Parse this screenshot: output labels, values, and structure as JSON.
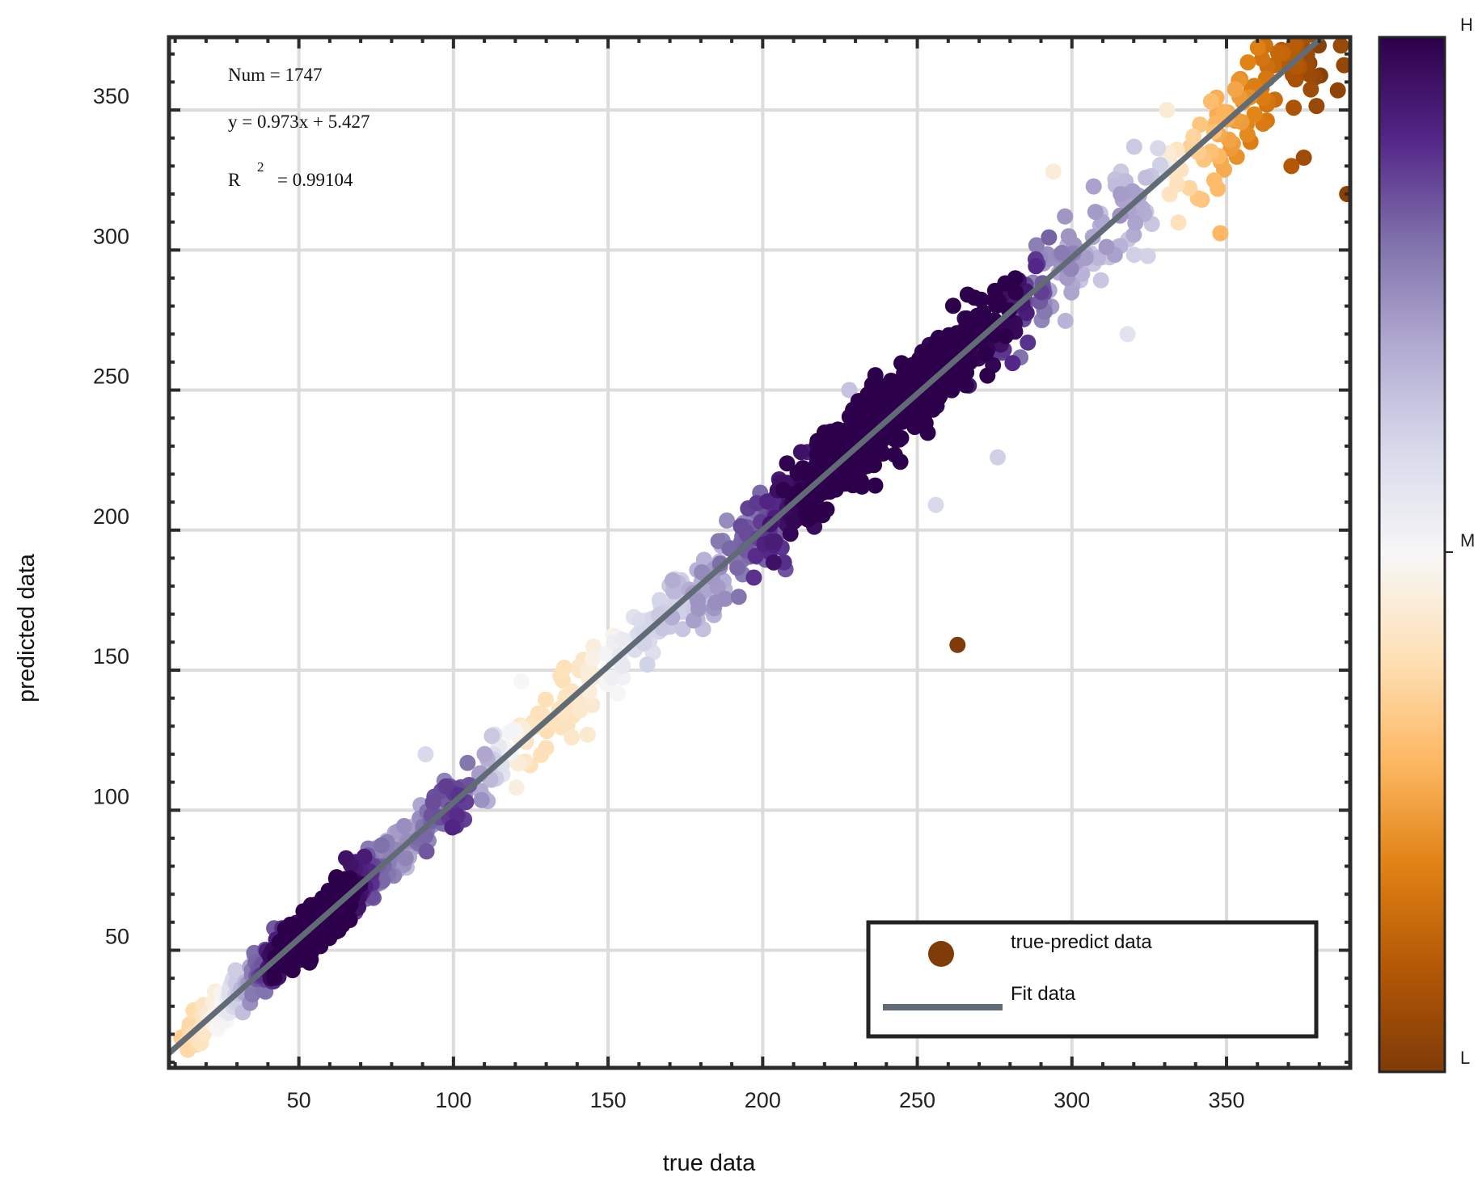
{
  "chart_data": {
    "type": "scatter",
    "xlabel": "true data",
    "ylabel": "predicted data",
    "xlim": [
      8,
      390
    ],
    "ylim": [
      8,
      376
    ],
    "x_ticks": [
      50,
      100,
      150,
      200,
      250,
      300,
      350
    ],
    "y_ticks": [
      50,
      100,
      150,
      200,
      250,
      300,
      350
    ],
    "grid": true,
    "annotations": {
      "num": "Num = 1747",
      "equation": "y = 0.973x + 5.427",
      "r2_prefix": "R",
      "r2_sup": "2",
      "r2_value": "= 0.99104"
    },
    "fit": {
      "slope": 0.973,
      "intercept": 5.427,
      "x_range": [
        8,
        390
      ],
      "color": "#616b75"
    },
    "legend": {
      "placement": "bottom-right",
      "entries": [
        {
          "label": "true-predict data",
          "marker": "circle",
          "color": "#7f3b08"
        },
        {
          "label": "Fit data",
          "marker": "line",
          "color": "#616b75"
        }
      ]
    },
    "colorbar": {
      "labels": {
        "high": "H",
        "mid": "M",
        "low": "L"
      },
      "colors": [
        "#2d004b",
        "#542788",
        "#8073ac",
        "#b2abd2",
        "#d8daeb",
        "#f7f7f7",
        "#fee0b6",
        "#fdb863",
        "#e08214",
        "#b35806",
        "#7f3b08"
      ]
    },
    "point_count_shown": 1747,
    "outliers": [
      {
        "x": 263,
        "y": 159,
        "density": 0.0
      },
      {
        "x": 389,
        "y": 320,
        "density": 0.02
      },
      {
        "x": 375,
        "y": 333,
        "density": 0.06
      },
      {
        "x": 371,
        "y": 330,
        "density": 0.1
      },
      {
        "x": 348,
        "y": 306,
        "density": 0.3
      },
      {
        "x": 294,
        "y": 328,
        "density": 0.45
      },
      {
        "x": 372,
        "y": 372,
        "density": 0.08
      },
      {
        "x": 387,
        "y": 373,
        "density": 0.05
      },
      {
        "x": 386,
        "y": 357,
        "density": 0.03
      },
      {
        "x": 388,
        "y": 366,
        "density": 0.04
      },
      {
        "x": 276,
        "y": 226,
        "density": 0.62
      },
      {
        "x": 256,
        "y": 209,
        "density": 0.6
      },
      {
        "x": 318,
        "y": 270,
        "density": 0.57
      },
      {
        "x": 228,
        "y": 250,
        "density": 0.65
      },
      {
        "x": 91,
        "y": 120,
        "density": 0.6
      },
      {
        "x": 122,
        "y": 146,
        "density": 0.5
      }
    ]
  }
}
